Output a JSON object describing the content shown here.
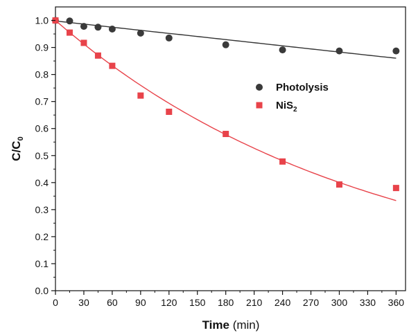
{
  "chart_data": {
    "type": "scatter",
    "xlabel": {
      "main": "Time",
      "unit": "(min)"
    },
    "ylabel": {
      "main": "C/C",
      "subscript": "0"
    },
    "xlim": [
      0,
      370
    ],
    "ylim": [
      0,
      1.05
    ],
    "xticks": [
      0,
      30,
      60,
      90,
      120,
      150,
      180,
      210,
      240,
      270,
      300,
      330,
      360
    ],
    "xtick_labels": [
      "0",
      "30",
      "60",
      "90",
      "120",
      "150",
      "180",
      "210",
      "240",
      "270",
      "300",
      "330",
      "360"
    ],
    "yticks": [
      0.0,
      0.1,
      0.2,
      0.3,
      0.4,
      0.5,
      0.6,
      0.7,
      0.8,
      0.9,
      1.0
    ],
    "ytick_labels": [
      "0.0",
      "0.1",
      "0.2",
      "0.3",
      "0.4",
      "0.5",
      "0.6",
      "0.7",
      "0.8",
      "0.9",
      "1.0"
    ],
    "grid": false,
    "legend_position": "center-right",
    "series": [
      {
        "name": "Photolysis",
        "legend_label": {
          "main": "Photolysis",
          "subscript": ""
        },
        "marker": "circle",
        "color": "#3a3a3a",
        "x": [
          0,
          15,
          30,
          45,
          60,
          90,
          120,
          180,
          240,
          300,
          360
        ],
        "y": [
          1.0,
          0.998,
          0.978,
          0.975,
          0.968,
          0.953,
          0.935,
          0.91,
          0.891,
          0.887,
          0.887
        ],
        "fit": {
          "kind": "linear",
          "color": "#333333",
          "y_at_0": 0.998,
          "slope": -0.000383
        }
      },
      {
        "name": "NiS2",
        "legend_label": {
          "main": "NiS",
          "subscript": "2"
        },
        "marker": "square",
        "color": "#e8434a",
        "x": [
          0,
          15,
          30,
          45,
          60,
          90,
          120,
          180,
          240,
          300,
          360
        ],
        "y": [
          1.0,
          0.955,
          0.917,
          0.87,
          0.832,
          0.722,
          0.662,
          0.58,
          0.478,
          0.393,
          0.38
        ],
        "fit": {
          "kind": "exponential",
          "color": "#e8434a",
          "c0": 1.0,
          "k": 0.00305
        }
      }
    ]
  }
}
